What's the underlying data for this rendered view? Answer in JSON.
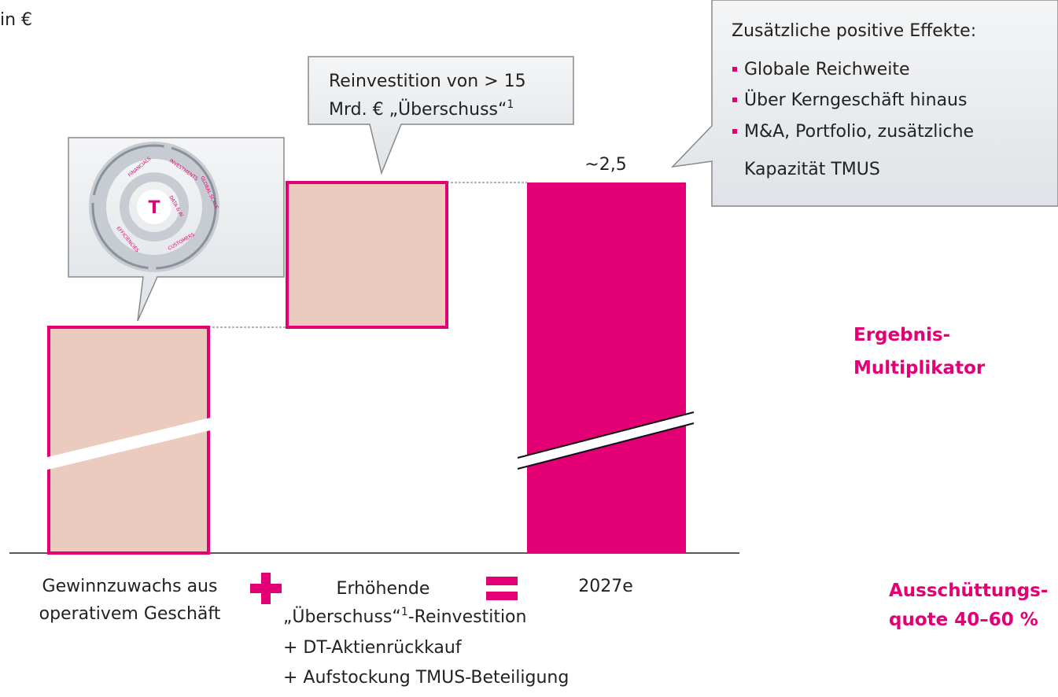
{
  "unit": "in €",
  "icon": {
    "center": "T",
    "labels": [
      "FINANCIALS",
      "INVESTMENTS",
      "GLOBAL SCALE",
      "DATA & AI",
      "CUSTOMERS",
      "EFFICIENCIES"
    ]
  },
  "callout_reinvest": {
    "line1": "Reinvestition von > 15",
    "line2": "Mrd. € „Überschuss“",
    "footnote": "1"
  },
  "callout_effects": {
    "title": "Zusätzliche positive Effekte:",
    "bullets": [
      "Globale Reichweite",
      "Über Kerngeschäft hinaus",
      "M&A, Portfolio, zusätzliche",
      "Kapazität TMUS"
    ]
  },
  "total_label": "~2,5",
  "side": {
    "multiplier": [
      "Ergebnis-",
      "Multiplikator"
    ],
    "payout": [
      "Ausschüttungs-",
      "quote 40–60 %"
    ]
  },
  "categories": {
    "operating": [
      "Gewinnzuwachs aus",
      "operativem Geschäft"
    ],
    "reinvest": {
      "title": "Erhöhende",
      "line1": "„Überschuss“",
      "footnote": "1",
      "line1_rest": "-Reinvestition",
      "line2": "+ DT-Aktienrückkauf",
      "line3": "+ Aufstockung TMUS-Beteiligung"
    },
    "result": "2027e"
  }
}
